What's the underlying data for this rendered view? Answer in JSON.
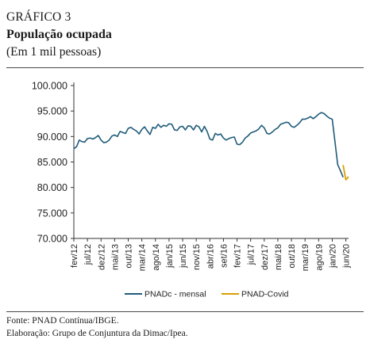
{
  "header": {
    "label": "GRÁFICO 3",
    "title": "População ocupada",
    "unit": "(Em 1 mil pessoas)"
  },
  "footer": {
    "source": "Fonte: PNAD Contínua/IBGE.",
    "credit": "Elaboração: Grupo de Conjuntura da Dimac/Ipea."
  },
  "chart_data": {
    "type": "line",
    "title": "População ocupada",
    "ylabel": "",
    "xlabel": "",
    "ylim": [
      70000,
      100000
    ],
    "yticks": [
      70000,
      75000,
      80000,
      85000,
      90000,
      95000,
      100000
    ],
    "ytick_labels": [
      "70.000",
      "75.000",
      "80.000",
      "85.000",
      "90.000",
      "95.000",
      "100.000"
    ],
    "xlim": [
      "2012-02",
      "2020-07"
    ],
    "xticks": [
      "2012-02",
      "2012-07",
      "2012-12",
      "2013-05",
      "2013-10",
      "2014-03",
      "2014-08",
      "2015-01",
      "2015-06",
      "2015-11",
      "2016-04",
      "2016-09",
      "2017-02",
      "2017-07",
      "2017-12",
      "2018-05",
      "2018-10",
      "2019-03",
      "2019-08",
      "2020-01",
      "2020-06"
    ],
    "xtick_labels": [
      "fev/12",
      "jul/12",
      "dez/12",
      "mai/13",
      "out/13",
      "mar/14",
      "ago/14",
      "jan/15",
      "jun/15",
      "nov/15",
      "abr/16",
      "set/16",
      "fev/17",
      "jul/17",
      "dez/17",
      "mai/18",
      "out/18",
      "mar/19",
      "ago/19",
      "jan/20",
      "jun/20"
    ],
    "grid": false,
    "legend_position": "bottom",
    "series": [
      {
        "name": "PNADc - mensal",
        "color": "#1f5c7a",
        "x": [
          "2012-02",
          "2012-03",
          "2012-04",
          "2012-05",
          "2012-06",
          "2012-07",
          "2012-08",
          "2012-09",
          "2012-10",
          "2012-11",
          "2012-12",
          "2013-01",
          "2013-02",
          "2013-03",
          "2013-04",
          "2013-05",
          "2013-06",
          "2013-07",
          "2013-08",
          "2013-09",
          "2013-10",
          "2013-11",
          "2013-12",
          "2014-01",
          "2014-02",
          "2014-03",
          "2014-04",
          "2014-05",
          "2014-06",
          "2014-07",
          "2014-08",
          "2014-09",
          "2014-10",
          "2014-11",
          "2014-12",
          "2015-01",
          "2015-02",
          "2015-03",
          "2015-04",
          "2015-05",
          "2015-06",
          "2015-07",
          "2015-08",
          "2015-09",
          "2015-10",
          "2015-11",
          "2015-12",
          "2016-01",
          "2016-02",
          "2016-03",
          "2016-04",
          "2016-05",
          "2016-06",
          "2016-07",
          "2016-08",
          "2016-09",
          "2016-10",
          "2016-11",
          "2016-12",
          "2017-01",
          "2017-02",
          "2017-03",
          "2017-04",
          "2017-05",
          "2017-06",
          "2017-07",
          "2017-08",
          "2017-09",
          "2017-10",
          "2017-11",
          "2017-12",
          "2018-01",
          "2018-02",
          "2018-03",
          "2018-04",
          "2018-05",
          "2018-06",
          "2018-07",
          "2018-08",
          "2018-09",
          "2018-10",
          "2018-11",
          "2018-12",
          "2019-01",
          "2019-02",
          "2019-03",
          "2019-04",
          "2019-05",
          "2019-06",
          "2019-07",
          "2019-08",
          "2019-09",
          "2019-10",
          "2019-11",
          "2019-12",
          "2020-01",
          "2020-02",
          "2020-03",
          "2020-04",
          "2020-05"
        ],
        "y": [
          87600,
          88000,
          89300,
          89000,
          88900,
          89600,
          89700,
          89500,
          89800,
          90200,
          89300,
          88800,
          88900,
          89300,
          90100,
          90300,
          90000,
          91000,
          90800,
          90600,
          91600,
          91800,
          91400,
          91100,
          90500,
          91400,
          91900,
          91100,
          90400,
          91800,
          91600,
          92400,
          91800,
          92200,
          92000,
          92500,
          92400,
          91300,
          91200,
          91900,
          92000,
          91300,
          92100,
          92000,
          91300,
          92200,
          91900,
          90900,
          92000,
          91000,
          89500,
          89300,
          90600,
          90300,
          90500,
          89700,
          89300,
          89600,
          89800,
          89900,
          88500,
          88400,
          88900,
          89700,
          90100,
          90700,
          90900,
          91100,
          91500,
          92200,
          91700,
          90600,
          90500,
          90900,
          91400,
          91700,
          92400,
          92600,
          92800,
          92700,
          92000,
          91800,
          92200,
          92700,
          93400,
          93400,
          93600,
          93900,
          93500,
          93900,
          94400,
          94700,
          94500,
          94000,
          93600,
          93400,
          89000,
          84500,
          83300,
          82000
        ]
      },
      {
        "name": "PNAD-Covid",
        "color": "#d9a000",
        "x": [
          "2020-05",
          "2020-06",
          "2020-07"
        ],
        "y": [
          84400,
          81500,
          82100
        ]
      }
    ]
  }
}
